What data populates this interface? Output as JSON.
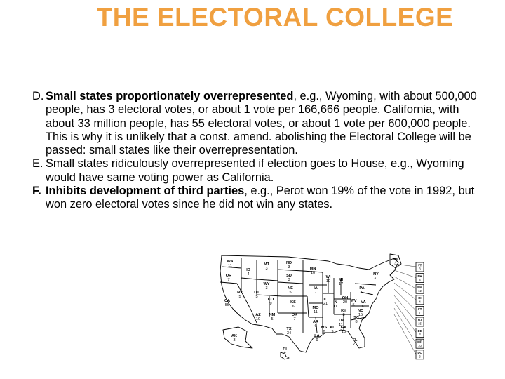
{
  "title": "THE ELECTORAL COLLEGE",
  "points": [
    {
      "marker": "D.",
      "bold_part": "Small states proportionately overrepresented",
      "rest": ", e.g., Wyoming, with about 500,000 people, has 3 electoral votes, or about 1 vote per 166,666 people. California, with about 33 million people, has 55 electoral votes, or about 1 vote per 600,000 people. This is why it is unlikely that a const. amend. abolishing the Electoral College will be passed: small states like their overrepresentation."
    },
    {
      "marker": "E.",
      "text": "Small states ridiculously overrepresented if election goes to House, e.g., Wyoming",
      "text2": "would have same voting power as California."
    },
    {
      "marker": "F.",
      "bold_part": "Inhibits development of third parties",
      "rest": ", e.g., Perot won 19% of the vote in 1992, but won zero electoral votes since he did not win any states."
    }
  ],
  "map": {
    "states": [
      {
        "abbr": "WA",
        "votes": "11"
      },
      {
        "abbr": "OR",
        "votes": "7"
      },
      {
        "abbr": "CA",
        "votes": "55"
      },
      {
        "abbr": "ID",
        "votes": "4"
      },
      {
        "abbr": "NV",
        "votes": "5"
      },
      {
        "abbr": "MT",
        "votes": "3"
      },
      {
        "abbr": "WY",
        "votes": "3"
      },
      {
        "abbr": "UT",
        "votes": "5"
      },
      {
        "abbr": "AZ",
        "votes": "10"
      },
      {
        "abbr": "CO",
        "votes": "9"
      },
      {
        "abbr": "NM",
        "votes": "5"
      },
      {
        "abbr": "ND",
        "votes": "3"
      },
      {
        "abbr": "SD",
        "votes": "3"
      },
      {
        "abbr": "NE",
        "votes": "5"
      },
      {
        "abbr": "KS",
        "votes": "6"
      },
      {
        "abbr": "OK",
        "votes": "7"
      },
      {
        "abbr": "TX",
        "votes": "34"
      },
      {
        "abbr": "MN",
        "votes": "10"
      },
      {
        "abbr": "IA",
        "votes": "7"
      },
      {
        "abbr": "MO",
        "votes": "11"
      },
      {
        "abbr": "AR",
        "votes": "6"
      },
      {
        "abbr": "LA",
        "votes": "9"
      },
      {
        "abbr": "WI",
        "votes": "10"
      },
      {
        "abbr": "IL",
        "votes": "21"
      },
      {
        "abbr": "MI",
        "votes": "17"
      },
      {
        "abbr": "IN",
        "votes": "11"
      },
      {
        "abbr": "OH",
        "votes": "20"
      },
      {
        "abbr": "KY",
        "votes": "8"
      },
      {
        "abbr": "TN",
        "votes": "11"
      },
      {
        "abbr": "MS",
        "votes": "6"
      },
      {
        "abbr": "AL",
        "votes": "9"
      },
      {
        "abbr": "GA",
        "votes": "15"
      },
      {
        "abbr": "FL",
        "votes": "27"
      },
      {
        "abbr": "SC",
        "votes": "8"
      },
      {
        "abbr": "NC",
        "votes": "15"
      },
      {
        "abbr": "VA",
        "votes": "13"
      },
      {
        "abbr": "WV",
        "votes": "5"
      },
      {
        "abbr": "PA",
        "votes": "21"
      },
      {
        "abbr": "NY",
        "votes": "31"
      },
      {
        "abbr": "AK",
        "votes": "3"
      },
      {
        "abbr": "HI",
        "votes": "4"
      }
    ],
    "side_boxes": [
      {
        "abbr": "VT",
        "votes": "3"
      },
      {
        "abbr": "NH",
        "votes": "4"
      },
      {
        "abbr": "MA",
        "votes": "12"
      },
      {
        "abbr": "RI",
        "votes": "4"
      },
      {
        "abbr": "CT",
        "votes": "7"
      },
      {
        "abbr": "NJ",
        "votes": "15"
      },
      {
        "abbr": "DE",
        "votes": "3"
      },
      {
        "abbr": "MD",
        "votes": "10"
      },
      {
        "abbr": "DC",
        "votes": "3"
      }
    ],
    "maine": {
      "abbr": "ME",
      "votes": "4"
    },
    "ink_color": "#000000"
  }
}
